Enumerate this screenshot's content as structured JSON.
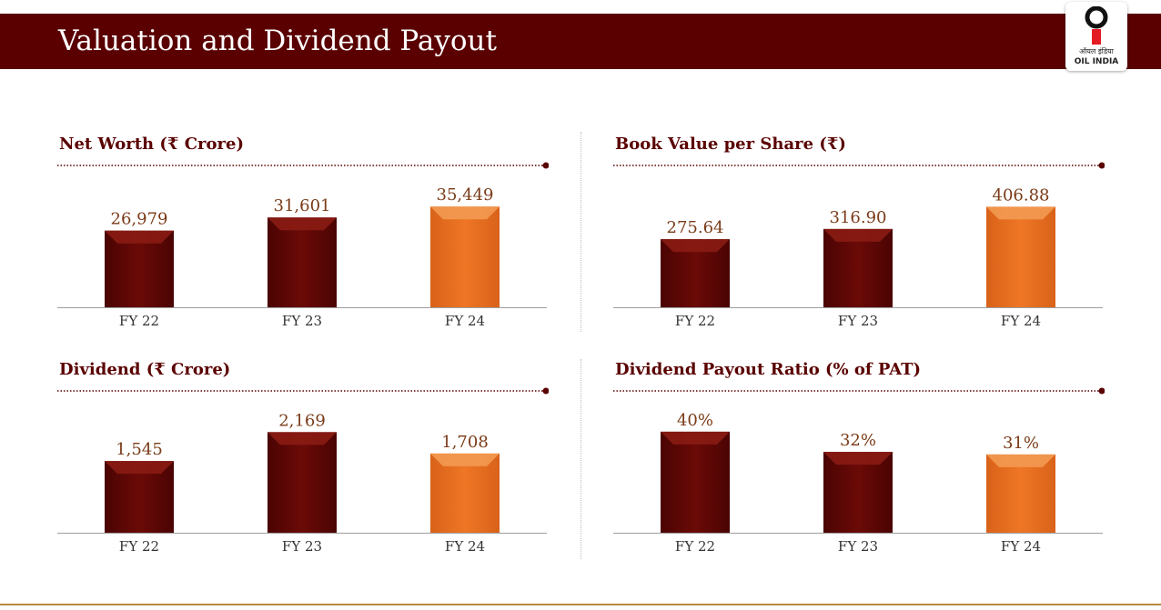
{
  "header": {
    "title": "Valuation and Dividend Payout"
  },
  "logo": {
    "hindi": "ऑयल इंडिया",
    "english": "OIL INDIA"
  },
  "colors": {
    "maroon": "#5a0000",
    "bar_dark": "#6b0a07",
    "bar_highlight": "#ee7625",
    "label": "#7a3b18"
  },
  "chart_data": [
    {
      "type": "bar",
      "title": "Net Worth (₹ Crore)",
      "categories": [
        "FY 22",
        "FY 23",
        "FY 24"
      ],
      "values": [
        26979,
        31601,
        35449
      ],
      "labels": [
        "26,979",
        "31,601",
        "35,449"
      ],
      "ylim": [
        0,
        40000
      ],
      "highlight_index": 2
    },
    {
      "type": "bar",
      "title": "Book Value per Share (₹)",
      "categories": [
        "FY 22",
        "FY 23",
        "FY 24"
      ],
      "values": [
        275.64,
        316.9,
        406.88
      ],
      "labels": [
        "275.64",
        "316.90",
        "406.88"
      ],
      "ylim": [
        0,
        460
      ],
      "highlight_index": 2
    },
    {
      "type": "bar",
      "title": "Dividend (₹ Crore)",
      "categories": [
        "FY 22",
        "FY 23",
        "FY 24"
      ],
      "values": [
        1545,
        2169,
        1708
      ],
      "labels": [
        "1,545",
        "2,169",
        "1,708"
      ],
      "ylim": [
        0,
        2450
      ],
      "highlight_index": 2
    },
    {
      "type": "bar",
      "title": "Dividend Payout Ratio (% of PAT)",
      "categories": [
        "FY 22",
        "FY 23",
        "FY 24"
      ],
      "values": [
        40,
        32,
        31
      ],
      "labels": [
        "40%",
        "32%",
        "31%"
      ],
      "ylim": [
        0,
        45
      ],
      "highlight_index": 2
    }
  ]
}
